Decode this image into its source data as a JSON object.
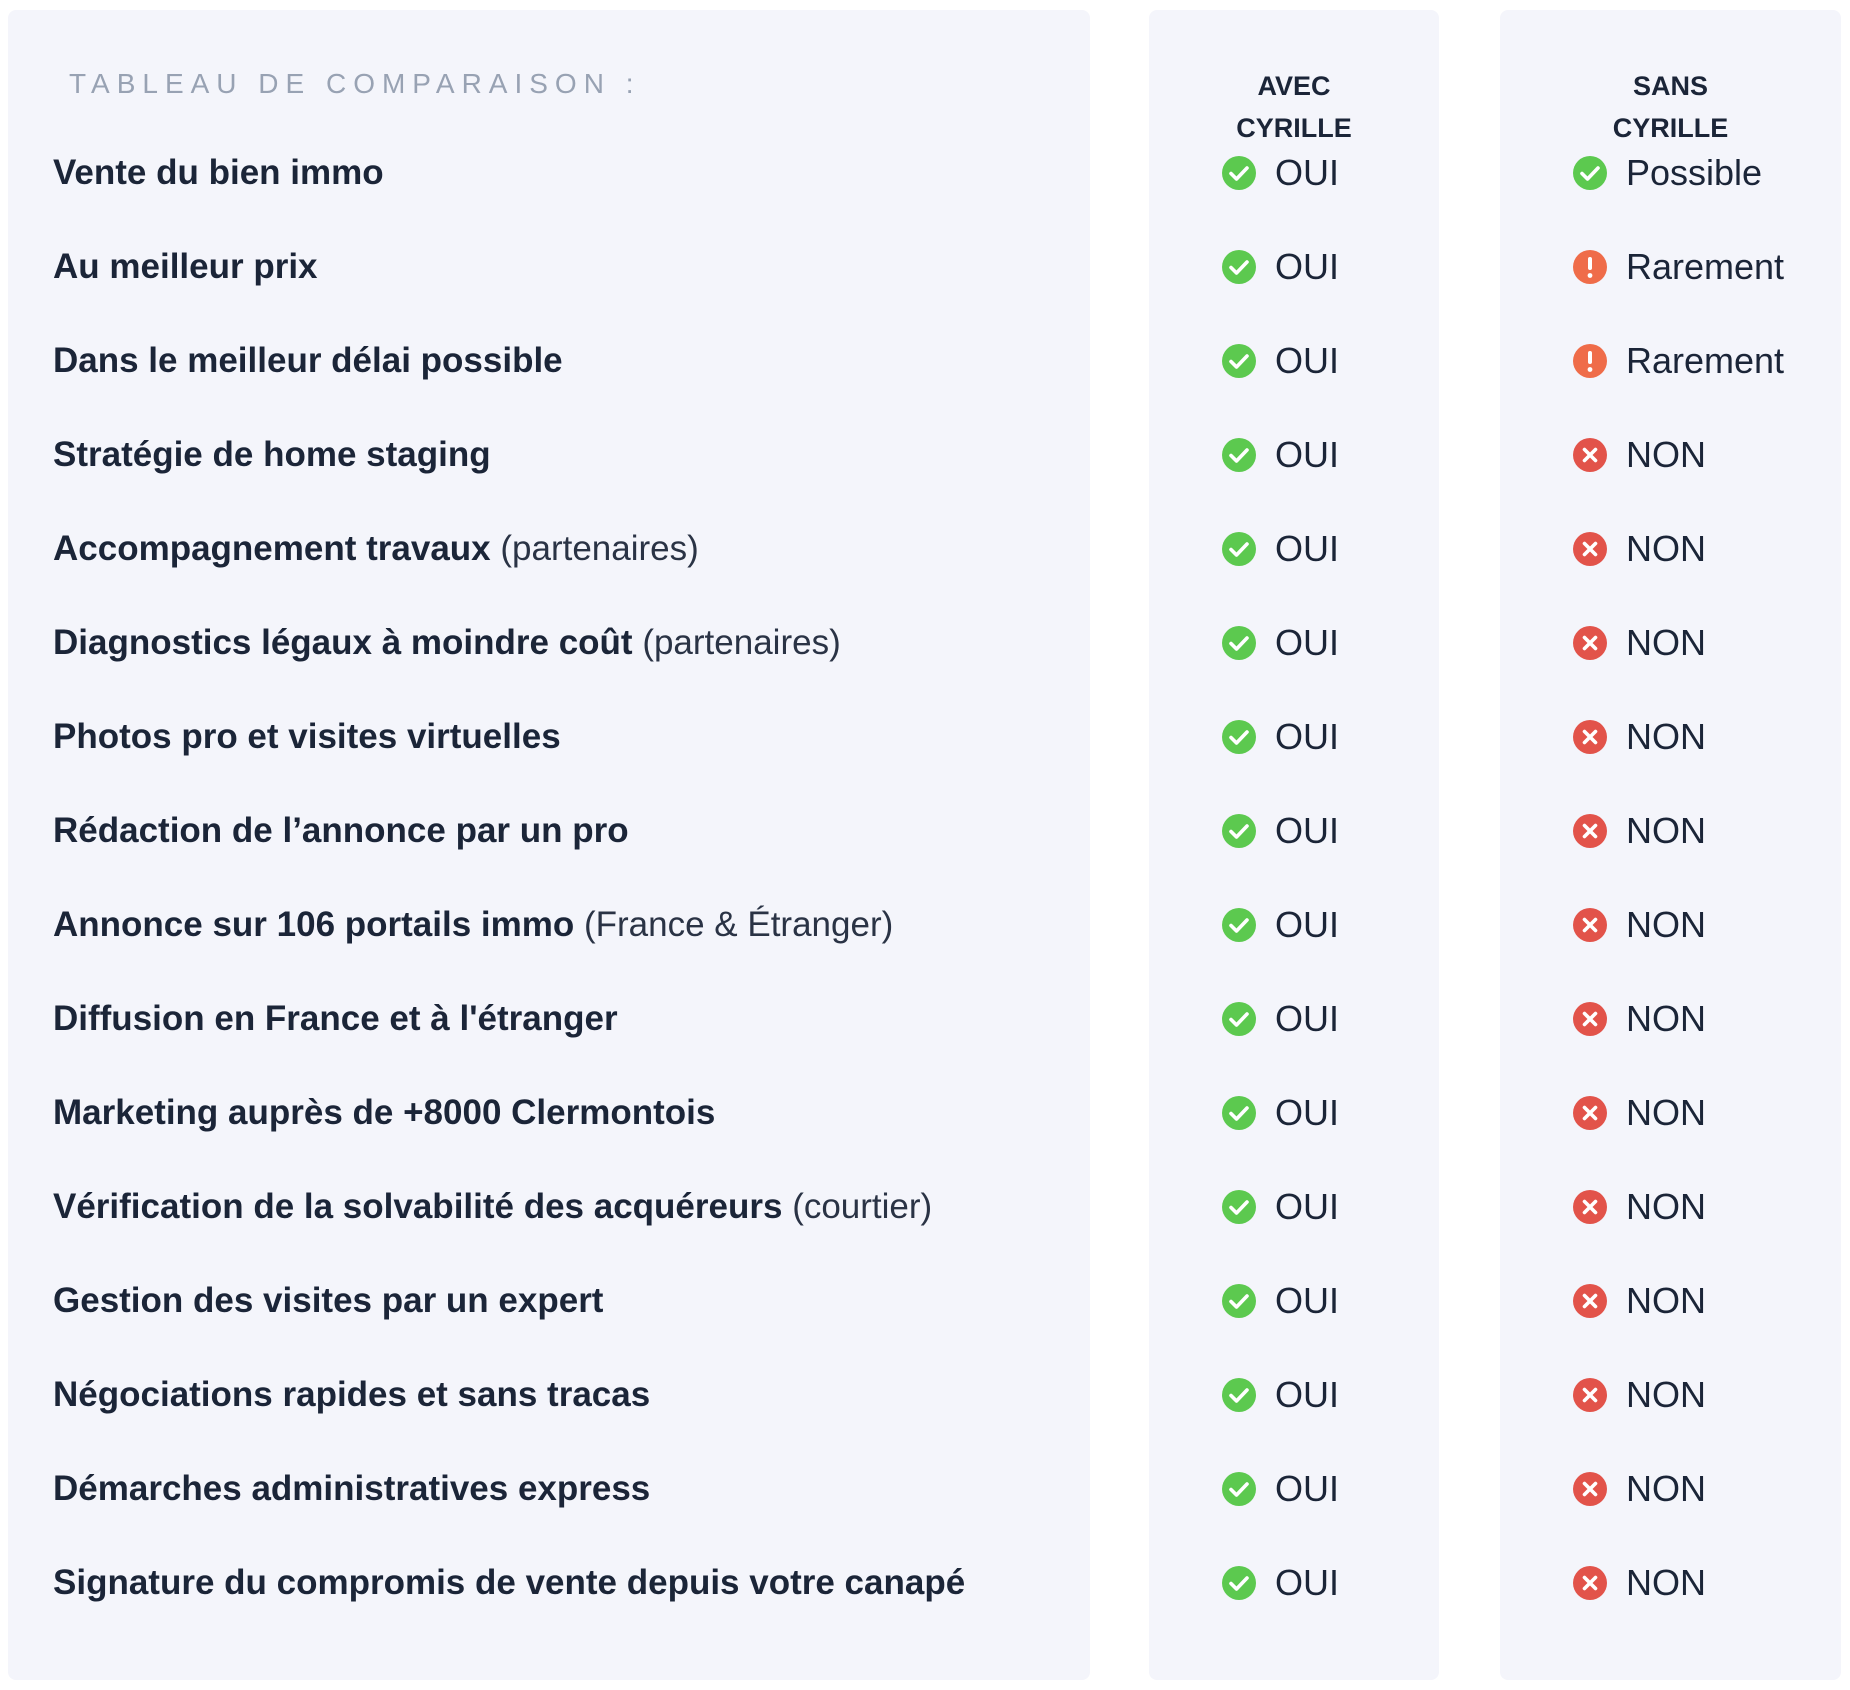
{
  "title": "TABLEAU DE COMPARAISON :",
  "columns": {
    "with": [
      "AVEC",
      "CYRILLE"
    ],
    "without": [
      "SANS",
      "CYRILLE"
    ]
  },
  "colors": {
    "check": "#5cc94f",
    "warn": "#ef6c49",
    "cross": "#e2534a"
  },
  "rows": [
    {
      "label": "Vente du bien immo",
      "note": "",
      "with": {
        "icon": "check-icon",
        "text": "OUI"
      },
      "without": {
        "icon": "check-icon",
        "text": "Possible"
      }
    },
    {
      "label": "Au meilleur prix",
      "note": "",
      "with": {
        "icon": "check-icon",
        "text": "OUI"
      },
      "without": {
        "icon": "warning-icon",
        "text": "Rarement"
      }
    },
    {
      "label": "Dans le meilleur délai possible",
      "note": "",
      "with": {
        "icon": "check-icon",
        "text": "OUI"
      },
      "without": {
        "icon": "warning-icon",
        "text": "Rarement"
      }
    },
    {
      "label": "Stratégie de home staging",
      "note": "",
      "with": {
        "icon": "check-icon",
        "text": "OUI"
      },
      "without": {
        "icon": "cross-icon",
        "text": "NON"
      }
    },
    {
      "label": "Accompagnement travaux",
      "note": "(partenaires)",
      "with": {
        "icon": "check-icon",
        "text": "OUI"
      },
      "without": {
        "icon": "cross-icon",
        "text": "NON"
      }
    },
    {
      "label": "Diagnostics légaux à moindre coût",
      "note": "(partenaires)",
      "with": {
        "icon": "check-icon",
        "text": "OUI"
      },
      "without": {
        "icon": "cross-icon",
        "text": "NON"
      }
    },
    {
      "label": "Photos pro et visites virtuelles",
      "note": "",
      "with": {
        "icon": "check-icon",
        "text": "OUI"
      },
      "without": {
        "icon": "cross-icon",
        "text": "NON"
      }
    },
    {
      "label": "Rédaction de l’annonce par un pro",
      "note": "",
      "with": {
        "icon": "check-icon",
        "text": "OUI"
      },
      "without": {
        "icon": "cross-icon",
        "text": "NON"
      }
    },
    {
      "label": "Annonce sur 106 portails immo",
      "note": "(France & Étranger)",
      "with": {
        "icon": "check-icon",
        "text": "OUI"
      },
      "without": {
        "icon": "cross-icon",
        "text": "NON"
      }
    },
    {
      "label": "Diffusion en France et à l'étranger",
      "note": "",
      "with": {
        "icon": "check-icon",
        "text": "OUI"
      },
      "without": {
        "icon": "cross-icon",
        "text": "NON"
      }
    },
    {
      "label": "Marketing auprès de +8000 Clermontois",
      "note": "",
      "with": {
        "icon": "check-icon",
        "text": "OUI"
      },
      "without": {
        "icon": "cross-icon",
        "text": "NON"
      }
    },
    {
      "label": "Vérification de la solvabilité des acquéreurs",
      "note": "(courtier)",
      "with": {
        "icon": "check-icon",
        "text": "OUI"
      },
      "without": {
        "icon": "cross-icon",
        "text": "NON"
      }
    },
    {
      "label": "Gestion des visites par un expert",
      "note": "",
      "with": {
        "icon": "check-icon",
        "text": "OUI"
      },
      "without": {
        "icon": "cross-icon",
        "text": "NON"
      }
    },
    {
      "label": "Négociations rapides et sans tracas",
      "note": "",
      "with": {
        "icon": "check-icon",
        "text": "OUI"
      },
      "without": {
        "icon": "cross-icon",
        "text": "NON"
      }
    },
    {
      "label": "Démarches administratives express",
      "note": "",
      "with": {
        "icon": "check-icon",
        "text": "OUI"
      },
      "without": {
        "icon": "cross-icon",
        "text": "NON"
      }
    },
    {
      "label": "Signature du compromis de vente depuis votre canapé",
      "note": "",
      "with": {
        "icon": "check-icon",
        "text": "OUI"
      },
      "without": {
        "icon": "cross-icon",
        "text": "NON"
      }
    }
  ]
}
